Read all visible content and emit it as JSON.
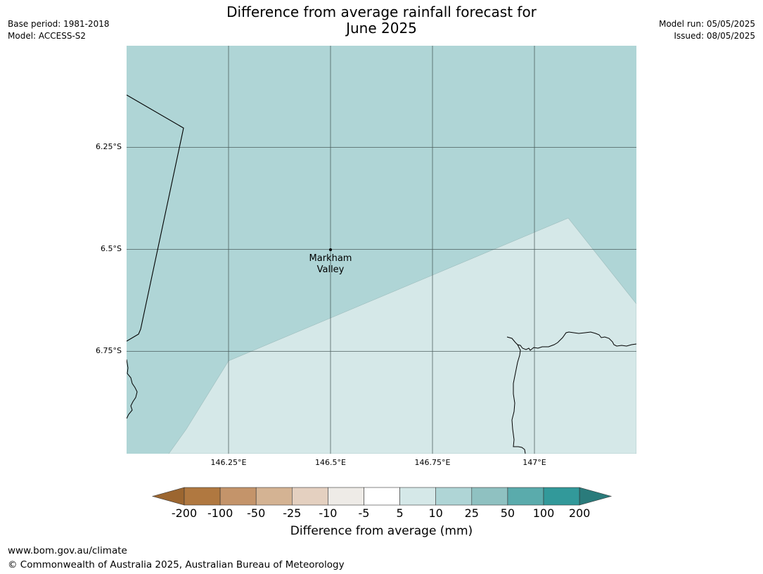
{
  "title_line1": "Difference from average rainfall forecast for",
  "title_line2": "June 2025",
  "base_period": "Base period: 1981-2018",
  "model": "Model: ACCESS-S2",
  "model_run": "Model run: 05/05/2025",
  "issued": "Issued: 08/05/2025",
  "lat_labels": [
    "6.25°S",
    "6.5°S",
    "6.75°S"
  ],
  "lon_labels": [
    "146.25°E",
    "146.5°E",
    "146.75°E",
    "147°E"
  ],
  "place": {
    "line1": "Markham",
    "line2": "Valley"
  },
  "legend": {
    "ticks": [
      "-200",
      "-100",
      "-50",
      "-25",
      "-10",
      "-5",
      "5",
      "10",
      "25",
      "50",
      "100",
      "200"
    ],
    "label": "Difference from average (mm)",
    "colors": [
      "#9c6630",
      "#b07840",
      "#c4946a",
      "#d4b393",
      "#e4d0c0",
      "#eeebe7",
      "#ffffff",
      "#d5e8e8",
      "#afd5d6",
      "#8fc1c1",
      "#5aabac",
      "#32999a",
      "#2a7b7b"
    ]
  },
  "map_colors": {
    "zone_10_25": "#afd5d6",
    "zone_5_10": "#d5e8e8"
  },
  "footer_url": "www.bom.gov.au/climate",
  "footer_copyright": "© Commonwealth of Australia 2025, Australian Bureau of Meteorology"
}
